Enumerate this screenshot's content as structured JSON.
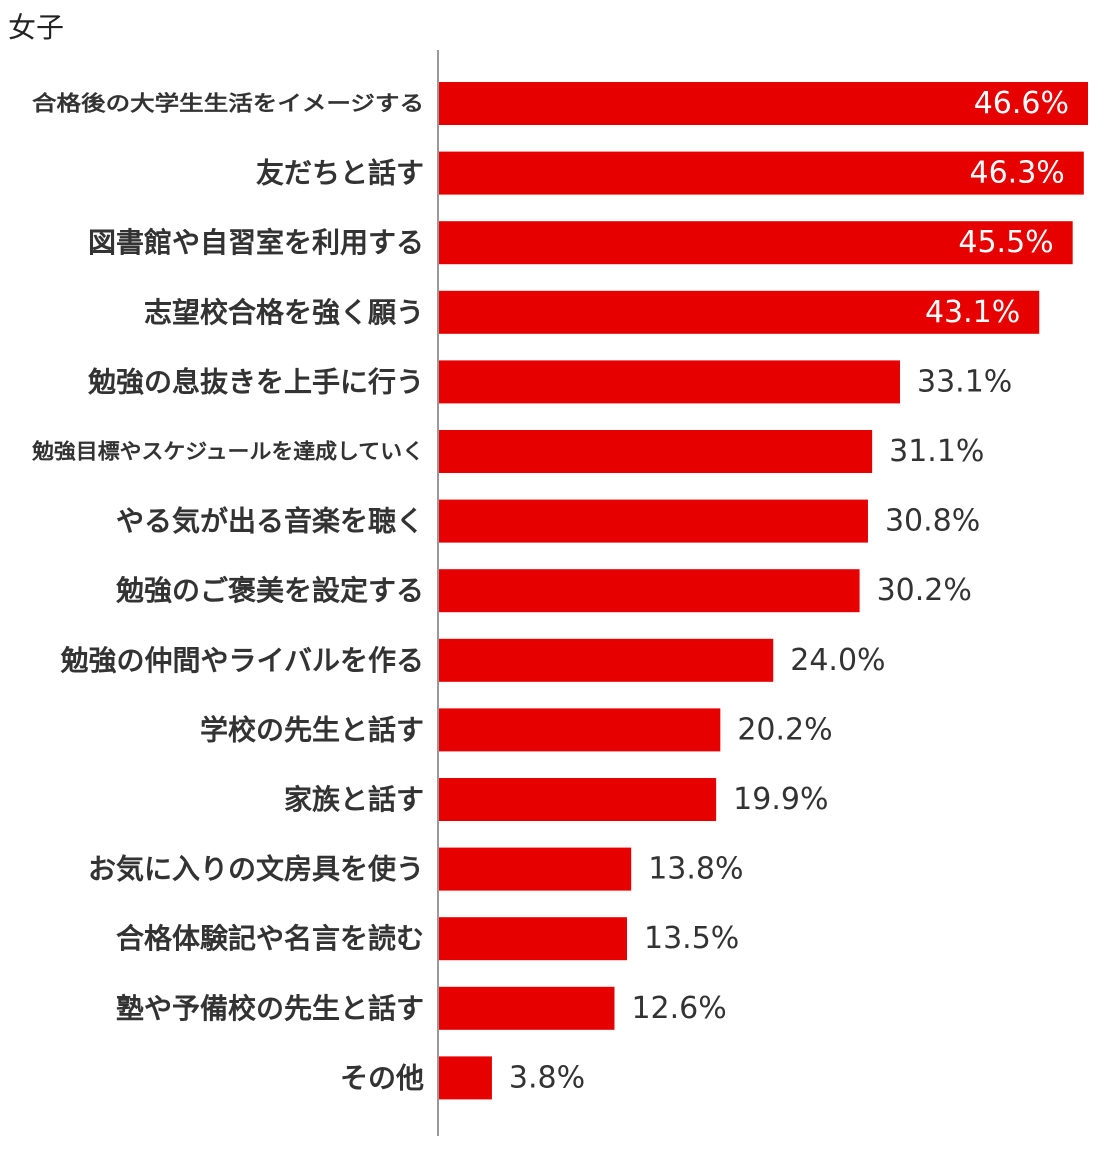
{
  "chart_data": {
    "type": "bar",
    "orientation": "horizontal",
    "title": "女子",
    "categories": [
      "合格後の大学生生活をイメージする",
      "友だちと話す",
      "図書館や自習室を利用する",
      "志望校合格を強く願う",
      "勉強の息抜きを上手に行う",
      "勉強目標やスケジュールを達成していく",
      "やる気が出る音楽を聴く",
      "勉強のご褒美を設定する",
      "勉強の仲間やライバルを作る",
      "学校の先生と話す",
      "家族と話す",
      "お気に入りの文房具を使う",
      "合格体験記や名言を読む",
      "塾や予備校の先生と話す",
      "その他"
    ],
    "values": [
      46.6,
      46.3,
      45.5,
      43.1,
      33.1,
      31.1,
      30.8,
      30.2,
      24.0,
      20.2,
      19.9,
      13.8,
      13.5,
      12.6,
      3.8
    ],
    "value_labels": [
      "46.6%",
      "46.3%",
      "45.5%",
      "43.1%",
      "33.1%",
      "31.1%",
      "30.8%",
      "30.2%",
      "24.0%",
      "20.2%",
      "19.9%",
      "13.8%",
      "13.5%",
      "12.6%",
      "3.8%"
    ],
    "xlim": [
      0,
      46.6
    ],
    "grid": false,
    "legend": "none",
    "colors": {
      "bar": "#e60000",
      "label_inside": "#ffffff",
      "label_outside": "#333333",
      "axis": "#999999"
    }
  }
}
